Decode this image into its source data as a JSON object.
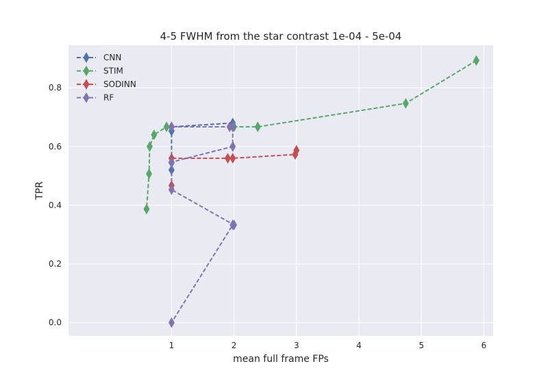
{
  "chart_data": {
    "type": "line",
    "title": "4-5 FWHM from the star contrast 1e-04 - 5e-04",
    "xlabel": "mean full frame FPs",
    "ylabel": "TPR",
    "xlim": [
      -0.65,
      6.15
    ],
    "ylim": [
      -0.045,
      0.945
    ],
    "xticks": [
      1,
      2,
      3,
      4,
      5,
      6
    ],
    "yticks": [
      0.0,
      0.2,
      0.4,
      0.6,
      0.8
    ],
    "xtick_labels": [
      "1",
      "2",
      "3",
      "4",
      "5",
      "6"
    ],
    "ytick_labels": [
      "0.0",
      "0.2",
      "0.4",
      "0.6",
      "0.8"
    ],
    "grid": true,
    "legend_position": "top-left",
    "marker": "thin-diamond",
    "linestyle": "dashed",
    "series": [
      {
        "name": "CNN",
        "color": "#4c72b0",
        "x": [
          1.98,
          1.0,
          1.0,
          1.0,
          1.0
        ],
        "y": [
          0.68,
          0.667,
          0.653,
          0.545,
          0.52
        ]
      },
      {
        "name": "STIM",
        "color": "#55a868",
        "x": [
          5.88,
          4.75,
          2.38,
          2.0,
          0.92,
          0.72,
          0.65,
          0.64,
          0.6
        ],
        "y": [
          0.893,
          0.747,
          0.667,
          0.667,
          0.667,
          0.64,
          0.6,
          0.507,
          0.387
        ]
      },
      {
        "name": "SODINN",
        "color": "#c44e52",
        "x": [
          3.0,
          2.98,
          1.98,
          1.9,
          1.0,
          1.0
        ],
        "y": [
          0.587,
          0.573,
          0.56,
          0.56,
          0.56,
          0.467
        ]
      },
      {
        "name": "RF",
        "color": "#8172b2",
        "x": [
          1.0,
          1.0,
          1.93,
          1.98,
          1.98,
          1.0,
          1.0,
          2.0,
          1.98,
          1.0
        ],
        "y": [
          0.667,
          0.667,
          0.667,
          0.667,
          0.6,
          0.547,
          0.453,
          0.333,
          0.333,
          0.0
        ]
      }
    ]
  }
}
